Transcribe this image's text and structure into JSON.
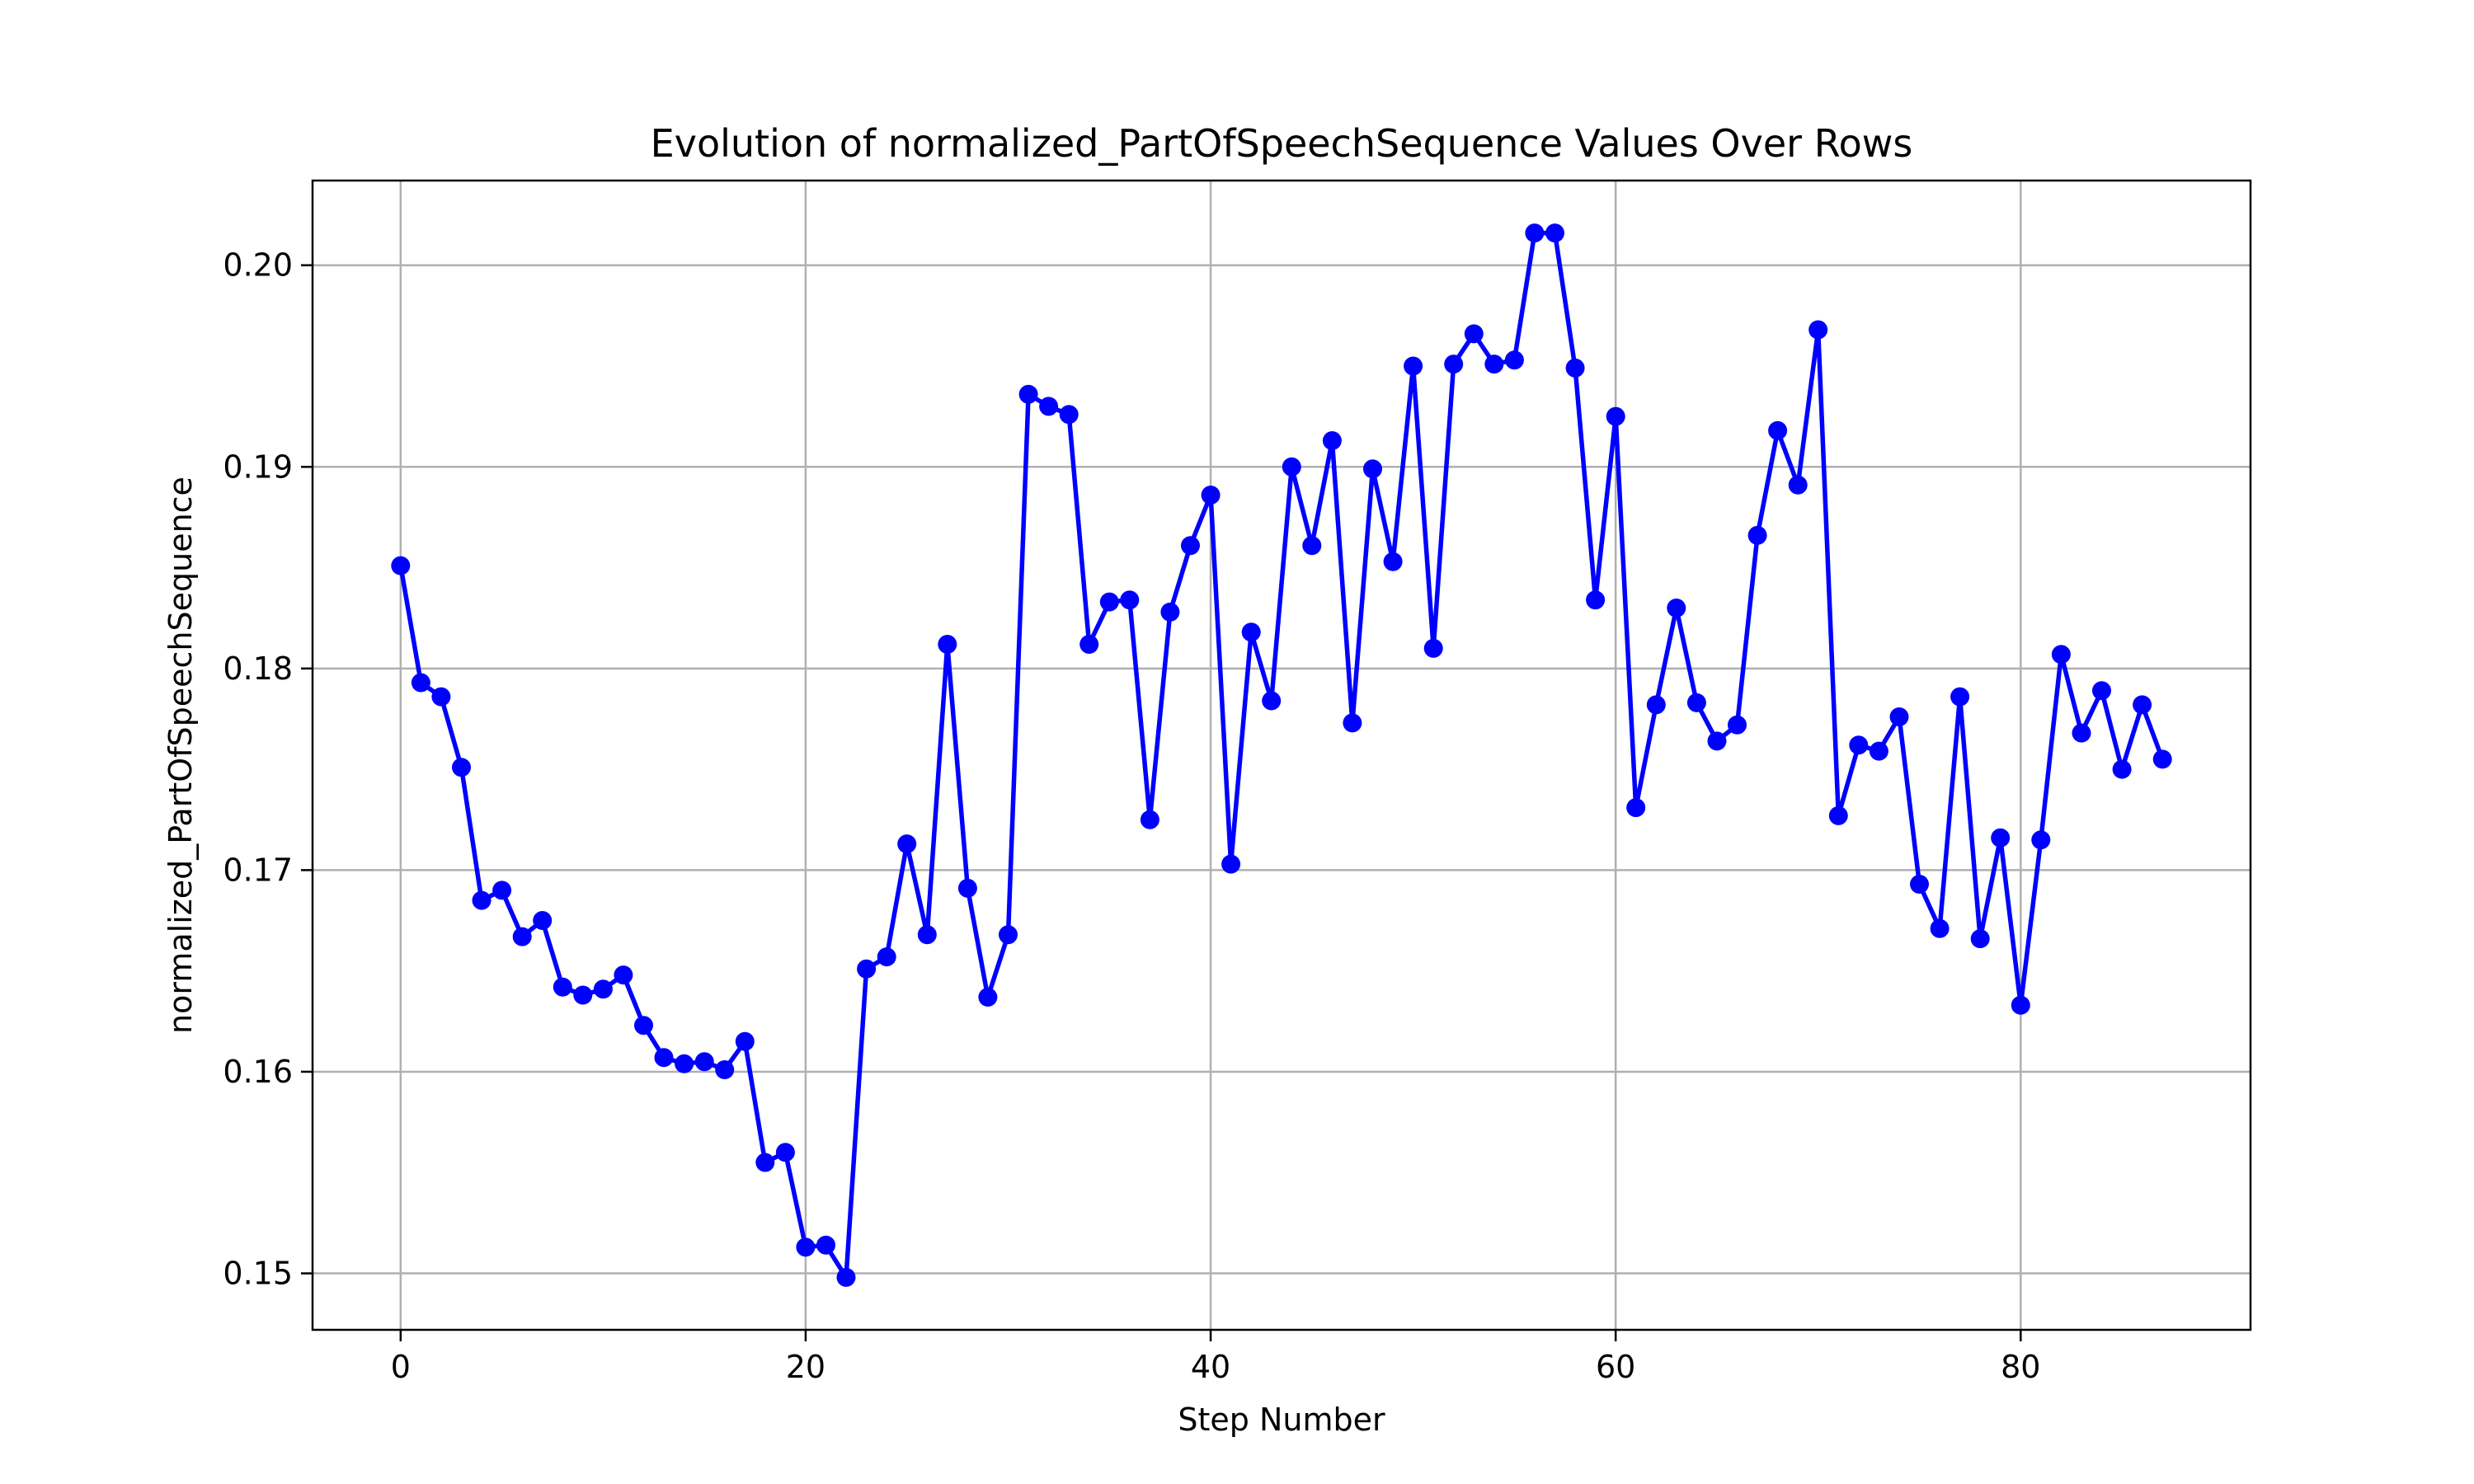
{
  "chart_data": {
    "type": "line",
    "title": "Evolution of normalized_PartOfSpeechSequence Values Over Rows",
    "xlabel": "Step Number",
    "ylabel": "normalized_PartOfSpeechSequence",
    "xlim": [
      -4.35,
      91.35
    ],
    "ylim": [
      0.1472,
      0.2042
    ],
    "xticks": [
      0,
      20,
      40,
      60,
      80
    ],
    "xtick_labels": [
      "0",
      "20",
      "40",
      "60",
      "80"
    ],
    "yticks": [
      0.15,
      0.16,
      0.17,
      0.18,
      0.19,
      0.2
    ],
    "ytick_labels": [
      "0.15",
      "0.16",
      "0.17",
      "0.18",
      "0.19",
      "0.20"
    ],
    "grid": true,
    "line_color": "#0000ff",
    "marker": "circle",
    "series": [
      {
        "x": [
          0,
          1,
          2,
          3,
          4,
          5,
          6,
          7,
          8,
          9,
          10,
          11,
          12,
          13,
          14,
          15,
          16,
          17,
          18,
          19,
          20,
          21,
          22,
          23,
          24,
          25,
          26,
          27,
          28,
          29,
          30,
          31,
          32,
          33,
          34,
          35,
          36,
          37,
          38,
          39,
          40,
          41,
          42,
          43,
          44,
          45,
          46,
          47,
          48,
          49,
          50,
          51,
          52,
          53,
          54,
          55,
          56,
          57,
          58,
          59,
          60,
          61,
          62,
          63,
          64,
          65,
          66,
          67,
          68,
          69,
          70,
          71,
          72,
          73,
          74,
          75,
          76,
          77,
          78,
          79,
          80,
          81,
          82,
          83,
          84,
          85,
          86,
          87
        ],
        "values": [
          0.1851,
          0.1793,
          0.1786,
          0.1751,
          0.1685,
          0.169,
          0.1667,
          0.1675,
          0.1642,
          0.1638,
          0.1641,
          0.1648,
          0.1623,
          0.1607,
          0.1604,
          0.1605,
          0.1601,
          0.1615,
          0.1555,
          0.156,
          0.1513,
          0.1514,
          0.1498,
          0.1651,
          0.1657,
          0.1713,
          0.1668,
          0.1812,
          0.1691,
          0.1637,
          0.1668,
          0.1936,
          0.193,
          0.1926,
          0.1812,
          0.1833,
          0.1834,
          0.1725,
          0.1828,
          0.1861,
          0.1886,
          0.1703,
          0.1818,
          0.1784,
          0.19,
          0.1861,
          0.1913,
          0.1773,
          0.1899,
          0.1853,
          0.195,
          0.181,
          0.1951,
          0.1966,
          0.1951,
          0.1953,
          0.2016,
          0.2016,
          0.1949,
          0.1834,
          0.1925,
          0.1731,
          0.1782,
          0.183,
          0.1783,
          0.1764,
          0.1772,
          0.1866,
          0.1918,
          0.1891,
          0.1968,
          0.1727,
          0.1762,
          0.1759,
          0.1776,
          0.1693,
          0.1671,
          0.1786,
          0.1666,
          0.1716,
          0.1633,
          0.1715,
          0.1807,
          0.1768,
          0.1789,
          0.175,
          0.1782,
          0.1755
        ]
      }
    ]
  }
}
